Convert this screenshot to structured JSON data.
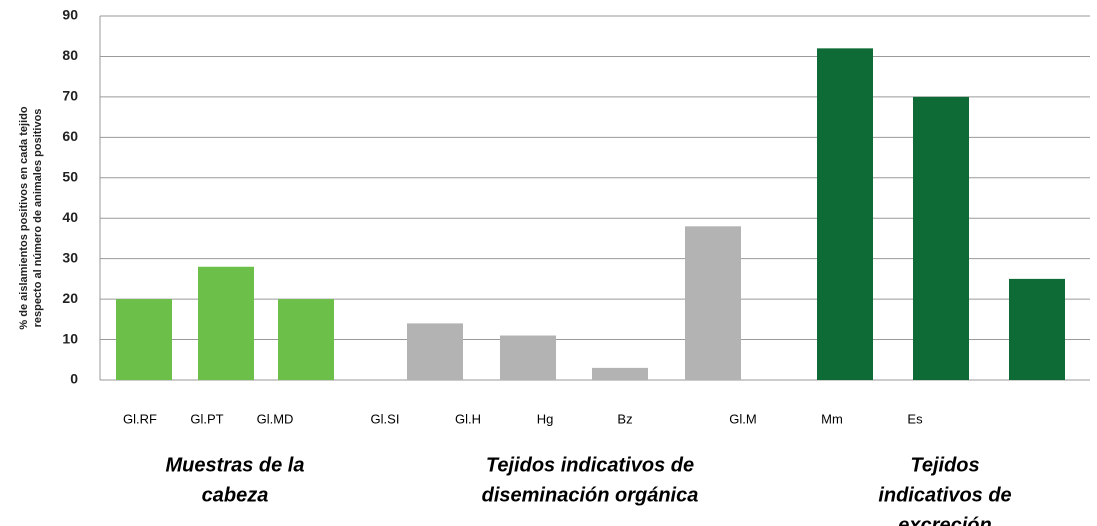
{
  "chart_data": {
    "type": "bar",
    "y_label_lines": [
      "% de aislamientos positivos en cada tejido",
      "respecto al número de animales positivos"
    ],
    "categories": [
      "Gl.RF",
      "Gl.PT",
      "Gl.MD",
      "Gl.SI",
      "Gl.H",
      "Hg",
      "Bz",
      "Gl.M",
      "Mm",
      "Es"
    ],
    "values": [
      20,
      28,
      20,
      14,
      11,
      3,
      38,
      82,
      70,
      25
    ],
    "colors": [
      "#6cc04a",
      "#6cc04a",
      "#6cc04a",
      "#b3b3b3",
      "#b3b3b3",
      "#b3b3b3",
      "#b3b3b3",
      "#0e6b36",
      "#0e6b36",
      "#0e6b36"
    ],
    "groups": [
      {
        "lines": [
          "Muestras de la",
          "cabeza"
        ]
      },
      {
        "lines": [
          "Tejidos indicativos de",
          "diseminación orgánica"
        ]
      },
      {
        "lines": [
          "Tejidos",
          "indicativos de",
          "excreción"
        ]
      }
    ],
    "ylim": [
      0,
      90
    ],
    "yticks": [
      0,
      10,
      20,
      30,
      40,
      50,
      60,
      70,
      80,
      90
    ],
    "grid": true
  }
}
